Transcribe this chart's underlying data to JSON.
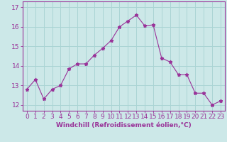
{
  "hours": [
    0,
    1,
    2,
    3,
    4,
    5,
    6,
    7,
    8,
    9,
    10,
    11,
    12,
    13,
    14,
    15,
    16,
    17,
    18,
    19,
    20,
    21,
    22,
    23
  ],
  "windchill": [
    12.8,
    13.3,
    12.3,
    12.8,
    13.0,
    13.85,
    14.1,
    14.1,
    14.55,
    14.9,
    15.3,
    16.0,
    16.3,
    16.6,
    16.05,
    16.1,
    14.4,
    14.2,
    13.55,
    13.55,
    12.6,
    12.6,
    12.0,
    12.2
  ],
  "line_color": "#993399",
  "marker": "*",
  "bg_color": "#cce8e8",
  "grid_color": "#aad4d4",
  "xlabel": "Windchill (Refroidissement éolien,°C)",
  "ylim_min": 11.7,
  "ylim_max": 17.3,
  "yticks": [
    12,
    13,
    14,
    15,
    16,
    17
  ],
  "axis_color": "#993399",
  "tick_label_color": "#993399",
  "xlabel_color": "#993399",
  "tick_fontsize": 6.5,
  "xlabel_fontsize": 6.5
}
